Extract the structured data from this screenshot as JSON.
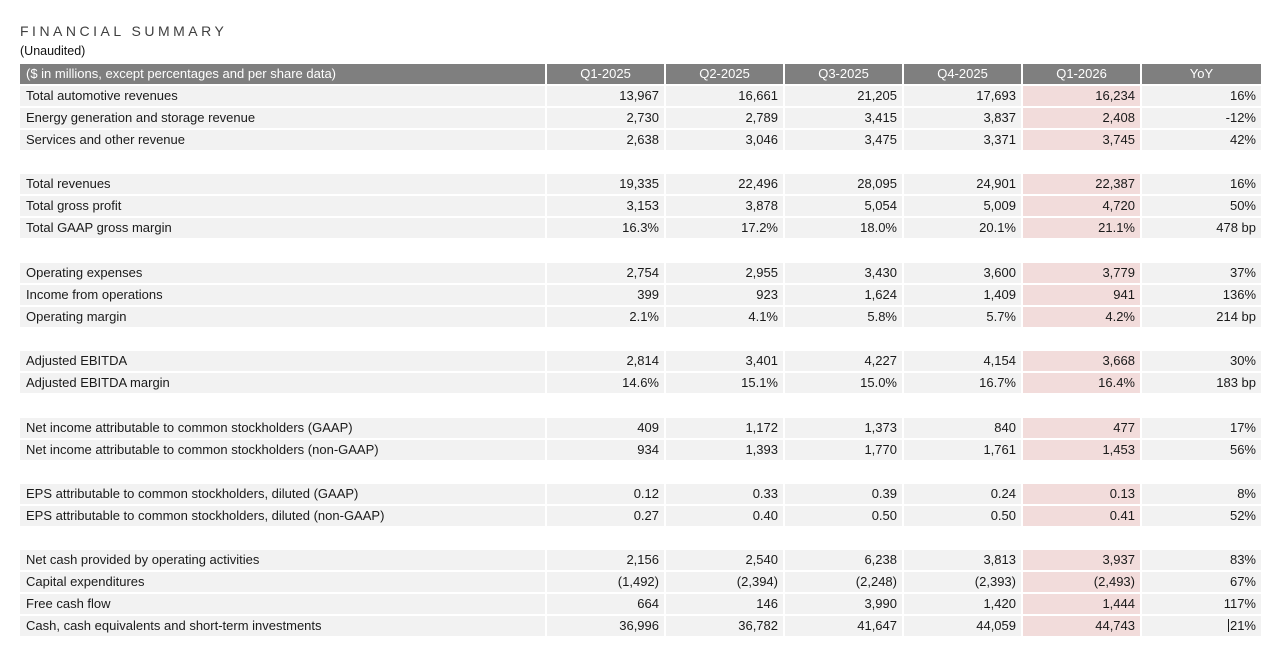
{
  "title": "FINANCIAL SUMMARY",
  "subtitle": "(Unaudited)",
  "table": {
    "header_label": "($ in millions, except percentages and per share data)",
    "columns": [
      "Q1-2025",
      "Q2-2025",
      "Q3-2025",
      "Q4-2025",
      "Q1-2026",
      "YoY"
    ],
    "highlight_column_index": 4,
    "colors": {
      "header_bg": "#7f7f7f",
      "header_text": "#ffffff",
      "row_bg": "#f2f2f2",
      "highlight_bg": "#f2dcdb",
      "body_text": "#1a1a1a"
    },
    "text_cursor": {
      "group": 6,
      "row": 3,
      "col": 5
    },
    "groups": [
      {
        "rows": [
          {
            "label": "Total automotive revenues",
            "values": [
              "13,967",
              "16,661",
              "21,205",
              "17,693",
              "16,234",
              "16%"
            ]
          },
          {
            "label": "Energy generation and storage revenue",
            "values": [
              "2,730",
              "2,789",
              "3,415",
              "3,837",
              "2,408",
              "-12%"
            ]
          },
          {
            "label": "Services and other revenue",
            "values": [
              "2,638",
              "3,046",
              "3,475",
              "3,371",
              "3,745",
              "42%"
            ]
          }
        ]
      },
      {
        "rows": [
          {
            "label": "Total revenues",
            "values": [
              "19,335",
              "22,496",
              "28,095",
              "24,901",
              "22,387",
              "16%"
            ]
          },
          {
            "label": "Total gross profit",
            "values": [
              "3,153",
              "3,878",
              "5,054",
              "5,009",
              "4,720",
              "50%"
            ]
          },
          {
            "label": "Total GAAP gross margin",
            "values": [
              "16.3%",
              "17.2%",
              "18.0%",
              "20.1%",
              "21.1%",
              "478 bp"
            ]
          }
        ]
      },
      {
        "rows": [
          {
            "label": "Operating expenses",
            "values": [
              "2,754",
              "2,955",
              "3,430",
              "3,600",
              "3,779",
              "37%"
            ]
          },
          {
            "label": "Income from operations",
            "values": [
              "399",
              "923",
              "1,624",
              "1,409",
              "941",
              "136%"
            ]
          },
          {
            "label": "Operating margin",
            "values": [
              "2.1%",
              "4.1%",
              "5.8%",
              "5.7%",
              "4.2%",
              "214 bp"
            ]
          }
        ]
      },
      {
        "rows": [
          {
            "label": "Adjusted EBITDA",
            "values": [
              "2,814",
              "3,401",
              "4,227",
              "4,154",
              "3,668",
              "30%"
            ]
          },
          {
            "label": "Adjusted EBITDA margin",
            "values": [
              "14.6%",
              "15.1%",
              "15.0%",
              "16.7%",
              "16.4%",
              "183 bp"
            ]
          }
        ]
      },
      {
        "rows": [
          {
            "label": "Net income attributable to common stockholders (GAAP)",
            "values": [
              "409",
              "1,172",
              "1,373",
              "840",
              "477",
              "17%"
            ]
          },
          {
            "label": "Net income attributable to common stockholders (non-GAAP)",
            "values": [
              "934",
              "1,393",
              "1,770",
              "1,761",
              "1,453",
              "56%"
            ]
          }
        ]
      },
      {
        "rows": [
          {
            "label": "EPS attributable to common stockholders, diluted (GAAP)",
            "values": [
              "0.12",
              "0.33",
              "0.39",
              "0.24",
              "0.13",
              "8%"
            ]
          },
          {
            "label": "EPS attributable to common stockholders, diluted (non-GAAP)",
            "values": [
              "0.27",
              "0.40",
              "0.50",
              "0.50",
              "0.41",
              "52%"
            ]
          }
        ]
      },
      {
        "rows": [
          {
            "label": "Net cash provided by operating activities",
            "values": [
              "2,156",
              "2,540",
              "6,238",
              "3,813",
              "3,937",
              "83%"
            ]
          },
          {
            "label": "Capital expenditures",
            "values": [
              "(1,492)",
              "(2,394)",
              "(2,248)",
              "(2,393)",
              "(2,493)",
              "67%"
            ]
          },
          {
            "label": "Free cash flow",
            "values": [
              "664",
              "146",
              "3,990",
              "1,420",
              "1,444",
              "117%"
            ]
          },
          {
            "label": "Cash, cash equivalents and short-term investments",
            "values": [
              "36,996",
              "36,782",
              "41,647",
              "44,059",
              "44,743",
              "21%"
            ]
          }
        ]
      }
    ]
  }
}
